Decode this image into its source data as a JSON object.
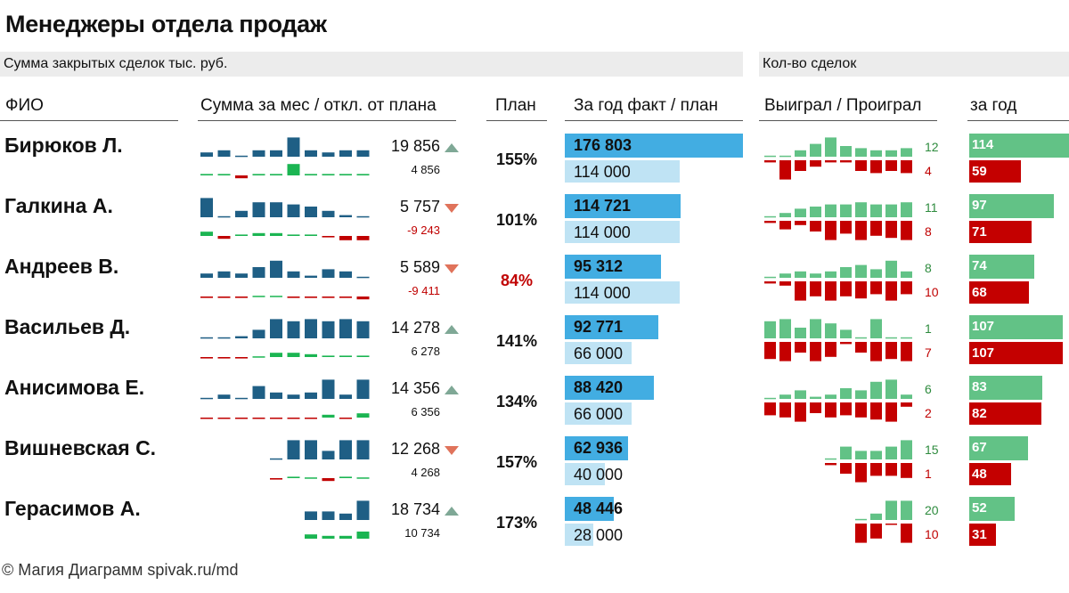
{
  "title": "Менеджеры отдела продаж",
  "band_left": "Сумма закрытых сделок  тыс. руб.",
  "band_right": "Кол-во сделок",
  "headers": {
    "fio": "ФИО",
    "month": "Сумма за мес  / откл. от плана",
    "plan": "План",
    "year": "За год факт / план",
    "winlose": "Выиграл / Проиграл",
    "peryear": "за год"
  },
  "footer": "© Магия Диаграмм spivak.ru/md",
  "colors": {
    "dark_bar": "#1f5f85",
    "green": "#1bb552",
    "red": "#c00000",
    "fact": "#42ade2",
    "plan": "#bfe3f4",
    "win": "#62c286",
    "loss": "#c40000",
    "up": "#7fa896",
    "down": "#e0735b"
  },
  "chart_data": {
    "type": "table",
    "title": "Менеджеры отдела продаж",
    "units": "тыс. руб.",
    "managers": [
      {
        "name": "Бирюков Л.",
        "month_value": "19 856",
        "deviation": "4 856",
        "trend": "up",
        "plan_pct": "155%",
        "plan_pct_ok": true,
        "year_fact": "176 803",
        "year_plan": "114 000",
        "fact_num": 176803,
        "plan_num": 114000,
        "won": "12",
        "lost": "4",
        "won_year": "114",
        "lost_year": "59",
        "spark": [
          0.2,
          0.3,
          0.05,
          0.3,
          0.3,
          0.9,
          0.3,
          0.2,
          0.3,
          0.3
        ],
        "dev": [
          0.1,
          0.1,
          -0.2,
          0.1,
          0.1,
          0.8,
          0.1,
          0.1,
          0.1,
          0.1
        ],
        "wins": [
          0.05,
          0.05,
          0.3,
          0.6,
          0.9,
          0.5,
          0.4,
          0.3,
          0.3,
          0.4
        ],
        "losses": [
          0.1,
          0.9,
          0.5,
          0.3,
          0.1,
          0.1,
          0.5,
          0.6,
          0.5,
          0.6
        ]
      },
      {
        "name": "Галкина А.",
        "month_value": "5 757",
        "deviation": "-9 243",
        "trend": "down",
        "plan_pct": "101%",
        "plan_pct_ok": true,
        "year_fact": "114 721",
        "year_plan": "114 000",
        "fact_num": 114721,
        "plan_num": 114000,
        "won": "11",
        "lost": "8",
        "won_year": "97",
        "lost_year": "71",
        "spark": [
          0.9,
          0.05,
          0.3,
          0.7,
          0.7,
          0.6,
          0.5,
          0.3,
          0.1,
          0.05
        ],
        "dev": [
          0.3,
          -0.2,
          0.1,
          0.2,
          0.2,
          0.1,
          0.1,
          -0.1,
          -0.3,
          -0.3
        ],
        "wins": [
          0.05,
          0.2,
          0.4,
          0.5,
          0.6,
          0.6,
          0.7,
          0.6,
          0.6,
          0.7
        ],
        "losses": [
          0.1,
          0.4,
          0.2,
          0.5,
          0.9,
          0.6,
          0.9,
          0.7,
          0.8,
          0.9
        ]
      },
      {
        "name": "Андреев В.",
        "month_value": "5 589",
        "deviation": "-9 411",
        "trend": "down",
        "plan_pct": "84%",
        "plan_pct_ok": false,
        "year_fact": "95 312",
        "year_plan": "114 000",
        "fact_num": 95312,
        "plan_num": 114000,
        "won": "8",
        "lost": "10",
        "won_year": "74",
        "lost_year": "68",
        "spark": [
          0.2,
          0.3,
          0.2,
          0.5,
          0.8,
          0.3,
          0.1,
          0.4,
          0.3,
          0.05
        ],
        "dev": [
          -0.1,
          -0.1,
          -0.1,
          0.05,
          0.05,
          -0.1,
          -0.1,
          -0.1,
          -0.1,
          -0.2
        ],
        "wins": [
          0.05,
          0.2,
          0.3,
          0.2,
          0.3,
          0.5,
          0.6,
          0.4,
          0.8,
          0.3
        ],
        "losses": [
          0.1,
          0.2,
          0.9,
          0.7,
          0.9,
          0.7,
          0.8,
          0.6,
          0.9,
          0.6
        ]
      },
      {
        "name": "Васильев Д.",
        "month_value": "14 278",
        "deviation": "6 278",
        "trend": "up",
        "plan_pct": "141%",
        "plan_pct_ok": true,
        "year_fact": "92 771",
        "year_plan": "66 000",
        "fact_num": 92771,
        "plan_num": 66000,
        "won": "1",
        "lost": "7",
        "won_year": "107",
        "lost_year": "107",
        "spark": [
          0.05,
          0.05,
          0.1,
          0.4,
          0.9,
          0.8,
          0.9,
          0.8,
          0.9,
          0.8
        ],
        "dev": [
          -0.1,
          -0.1,
          -0.1,
          0.05,
          0.3,
          0.3,
          0.2,
          0.1,
          0.1,
          0.1
        ],
        "wins": [
          0.8,
          0.9,
          0.5,
          0.9,
          0.7,
          0.4,
          0.05,
          0.9,
          0.05,
          0.05
        ],
        "losses": [
          0.8,
          0.9,
          0.5,
          0.9,
          0.7,
          0.1,
          0.5,
          0.9,
          0.8,
          0.9
        ]
      },
      {
        "name": "Анисимова Е.",
        "month_value": "14 356",
        "deviation": "6 356",
        "trend": "up",
        "plan_pct": "134%",
        "plan_pct_ok": true,
        "year_fact": "88 420",
        "year_plan": "66 000",
        "fact_num": 88420,
        "plan_num": 66000,
        "won": "6",
        "lost": "2",
        "won_year": "83",
        "lost_year": "82",
        "spark": [
          0.05,
          0.2,
          0.05,
          0.6,
          0.3,
          0.2,
          0.3,
          0.9,
          0.2,
          0.9
        ],
        "dev": [
          -0.05,
          -0.05,
          -0.05,
          -0.05,
          -0.05,
          -0.05,
          -0.05,
          0.2,
          -0.05,
          0.3
        ],
        "wins": [
          0.05,
          0.2,
          0.4,
          0.1,
          0.2,
          0.5,
          0.4,
          0.8,
          0.9,
          0.2
        ],
        "losses": [
          0.6,
          0.7,
          0.9,
          0.5,
          0.7,
          0.6,
          0.7,
          0.8,
          0.9,
          0.2
        ]
      },
      {
        "name": "Вишневская С.",
        "month_value": "12 268",
        "deviation": "4 268",
        "trend": "down",
        "plan_pct": "157%",
        "plan_pct_ok": true,
        "year_fact": "62 936",
        "year_plan": "40 000",
        "fact_num": 62936,
        "plan_num": 40000,
        "won": "15",
        "lost": "1",
        "won_year": "67",
        "lost_year": "48",
        "spark": [
          null,
          null,
          null,
          null,
          0.05,
          0.9,
          0.9,
          0.4,
          0.9,
          0.9
        ],
        "dev": [
          null,
          null,
          null,
          null,
          -0.1,
          0.1,
          0.05,
          -0.2,
          0.1,
          0.05
        ],
        "wins": [
          null,
          null,
          null,
          null,
          0.05,
          0.6,
          0.4,
          0.4,
          0.6,
          0.9
        ],
        "losses": [
          null,
          null,
          null,
          null,
          0.1,
          0.5,
          0.9,
          0.6,
          0.6,
          0.7
        ]
      },
      {
        "name": "Герасимов А.",
        "month_value": "18 734",
        "deviation": "10 734",
        "trend": "up",
        "plan_pct": "173%",
        "plan_pct_ok": true,
        "year_fact": "48 446",
        "year_plan": "28 000",
        "fact_num": 48446,
        "plan_num": 28000,
        "won": "20",
        "lost": "10",
        "won_year": "52",
        "lost_year": "31",
        "spark": [
          null,
          null,
          null,
          null,
          null,
          null,
          0.4,
          0.4,
          0.3,
          0.9
        ],
        "dev": [
          null,
          null,
          null,
          null,
          null,
          null,
          0.3,
          0.2,
          0.2,
          0.5
        ],
        "wins": [
          null,
          null,
          null,
          null,
          null,
          null,
          0.05,
          0.3,
          0.9,
          0.9
        ],
        "losses": [
          null,
          null,
          null,
          null,
          null,
          null,
          0.9,
          0.7,
          0.05,
          0.9
        ]
      }
    ],
    "year_scale_max": 176803,
    "count_scale_max": 114
  }
}
